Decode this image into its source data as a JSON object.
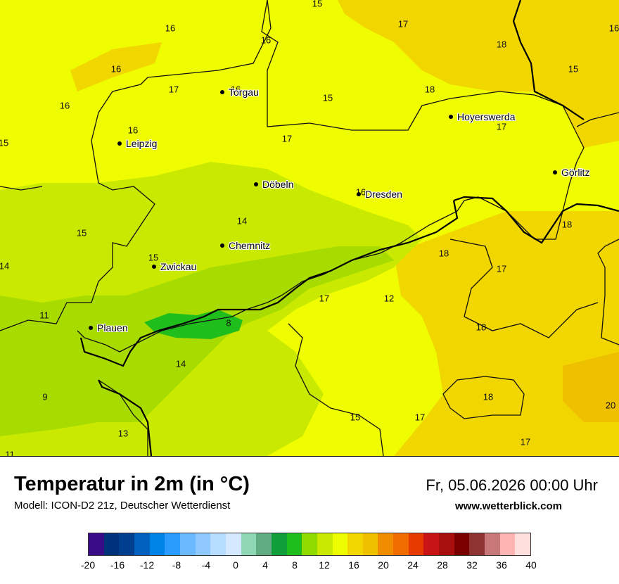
{
  "title": "Temperatur in 2m (in °C)",
  "model_line": "Modell: ICON-D2 21z, Deutscher Wetterdienst",
  "datetime": "Fr, 05.06.2026 00:00 Uhr",
  "website": "www.wetterblick.com",
  "colors": {
    "c12": "#c9ea00",
    "c14": "#a8dc00",
    "c16": "#f0fc00",
    "c18": "#f1d600",
    "c20": "#efc000",
    "c10": "#1fbe1c",
    "c8": "#0f9e3a"
  },
  "cities": [
    {
      "name": "Torgau"
    },
    {
      "name": "Leipzig"
    },
    {
      "name": "Hoyerswerda"
    },
    {
      "name": "Görlitz"
    },
    {
      "name": "Döbeln"
    },
    {
      "name": "Dresden"
    },
    {
      "name": "Chemnitz"
    },
    {
      "name": "Zwickau"
    },
    {
      "name": "Plauen"
    }
  ],
  "values": [
    "15",
    "16",
    "17",
    "16",
    "18",
    "16",
    "15",
    "16",
    "17",
    "16",
    "16",
    "16",
    "15",
    "15",
    "18",
    "17",
    "17",
    "16",
    "15",
    "14",
    "15",
    "14",
    "11",
    "8",
    "17",
    "12",
    "18",
    "17",
    "18",
    "14",
    "9",
    "18",
    "15",
    "17",
    "20",
    "13",
    "17",
    "11",
    "18"
  ],
  "legend": {
    "colors": [
      "#3a0b86",
      "#00317b",
      "#003f8f",
      "#0060bf",
      "#0083e6",
      "#2a9cff",
      "#6bb9ff",
      "#8fc8ff",
      "#b6dcff",
      "#d4e9ff",
      "#8fd7b4",
      "#61ab83",
      "#0f9e3a",
      "#1fbe1c",
      "#8fdb00",
      "#c9ea00",
      "#eefc00",
      "#f1d600",
      "#efc000",
      "#f08c00",
      "#f06c00",
      "#e63a00",
      "#c81414",
      "#a80e0e",
      "#7a0000",
      "#8f3232",
      "#c87878",
      "#ffb4b4",
      "#ffdede"
    ],
    "ticks": [
      "-20",
      "-16",
      "-12",
      "-8",
      "-4",
      "0",
      "4",
      "8",
      "12",
      "16",
      "20",
      "24",
      "28",
      "32",
      "36",
      "40"
    ]
  }
}
